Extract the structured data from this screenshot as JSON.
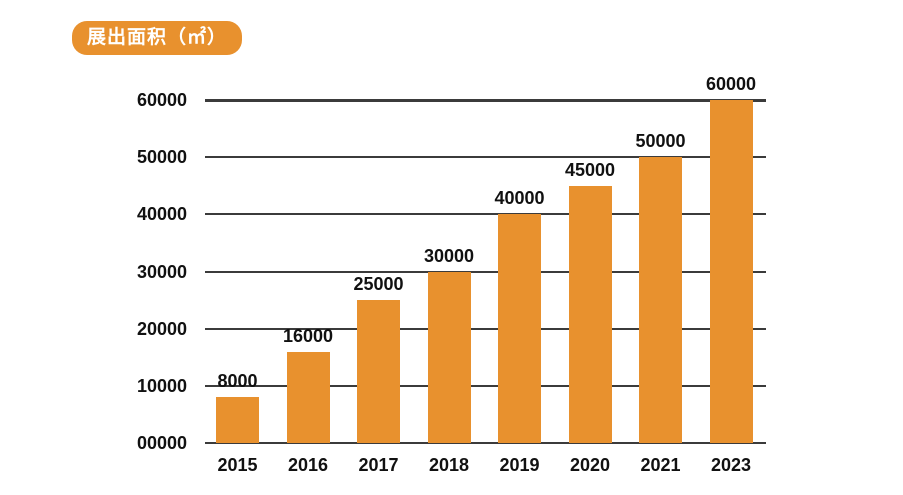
{
  "title": {
    "text": "展出面积（㎡）"
  },
  "colors": {
    "bar": "#E8912E",
    "badge_background": "#E8912E",
    "badge_text": "#FFFFFF",
    "gridline": "#3B3B3B",
    "label_text": "#111111",
    "background": "#FFFFFF"
  },
  "chart_data": {
    "type": "bar",
    "title": "展出面积（㎡）",
    "categories": [
      "2015",
      "2016",
      "2017",
      "2018",
      "2019",
      "2020",
      "2021",
      "2023"
    ],
    "values": [
      8000,
      16000,
      25000,
      30000,
      40000,
      45000,
      50000,
      60000
    ],
    "value_labels": [
      "8000",
      "16000",
      "25000",
      "30000",
      "40000",
      "45000",
      "50000",
      "60000"
    ],
    "xlabel": "",
    "ylabel": "",
    "ylim": [
      0,
      60000
    ],
    "ytick_interval": 10000,
    "ytick_labels": [
      "00000",
      "10000",
      "20000",
      "30000",
      "40000",
      "50000",
      "60000"
    ],
    "grid": true,
    "legend": "none",
    "bars_drawn_over_gridlines": true
  }
}
